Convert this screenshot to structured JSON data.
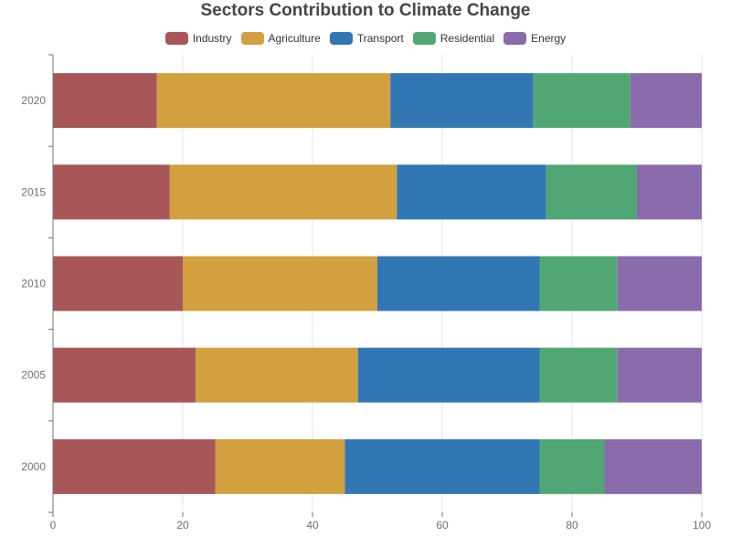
{
  "chart_data": {
    "type": "bar",
    "orientation": "horizontal",
    "stacked": true,
    "title": "Sectors Contribution to Climate Change",
    "categories": [
      "2000",
      "2005",
      "2010",
      "2015",
      "2020"
    ],
    "series": [
      {
        "name": "Industry",
        "color": "#a85657",
        "values": [
          25,
          22,
          20,
          18,
          16
        ]
      },
      {
        "name": "Agriculture",
        "color": "#d3a03f",
        "values": [
          20,
          25,
          30,
          35,
          36
        ]
      },
      {
        "name": "Transport",
        "color": "#3177b4",
        "values": [
          30,
          28,
          25,
          23,
          22
        ]
      },
      {
        "name": "Residential",
        "color": "#51a773",
        "values": [
          10,
          12,
          12,
          14,
          15
        ]
      },
      {
        "name": "Energy",
        "color": "#8a6cad",
        "values": [
          15,
          13,
          13,
          10,
          11
        ]
      }
    ],
    "xlim": [
      0,
      100
    ],
    "x_ticks": [
      0,
      20,
      40,
      60,
      80,
      100
    ],
    "grid": "vertical",
    "legend_position": "top"
  }
}
